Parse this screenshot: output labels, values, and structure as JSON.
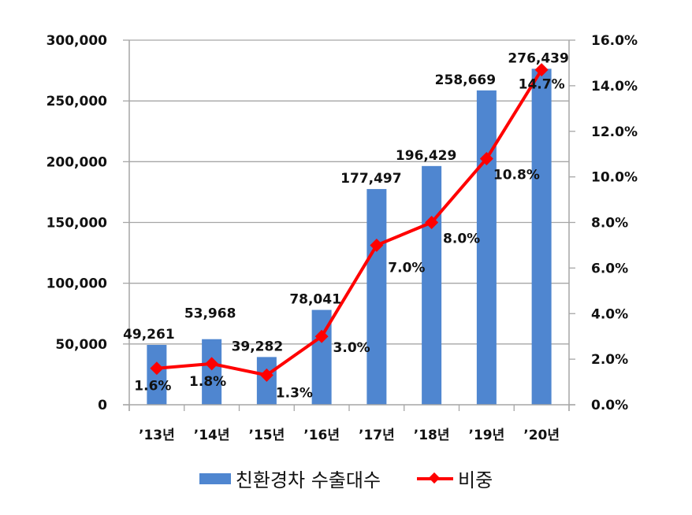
{
  "chart_data": {
    "type": "bar+line",
    "title": "",
    "categories": [
      "'13년",
      "'14년",
      "'15년",
      "'16년",
      "'17년",
      "'18년",
      "'19년",
      "'20년"
    ],
    "series": [
      {
        "name": "친환경차 수출대수",
        "type": "bar",
        "axis": "left",
        "color": "#4f86d0",
        "values": [
          49261,
          53968,
          39282,
          78041,
          177497,
          196429,
          258669,
          276439
        ],
        "labels": [
          "49,261",
          "53,968",
          "39,282",
          "78,041",
          "177,497",
          "196,429",
          "258,669",
          "276,439"
        ]
      },
      {
        "name": "비중",
        "type": "line",
        "axis": "right",
        "color": "#ff0000",
        "marker": "diamond",
        "values": [
          1.6,
          1.8,
          1.3,
          3.0,
          7.0,
          8.0,
          10.8,
          14.7
        ],
        "labels": [
          "1.6%",
          "1.8%",
          "1.3%",
          "3.0%",
          "7.0%",
          "8.0%",
          "10.8%",
          "14.7%"
        ]
      }
    ],
    "left_axis": {
      "ylim": [
        0,
        300000
      ],
      "ticks": [
        "0",
        "50,000",
        "100,000",
        "150,000",
        "200,000",
        "250,000",
        "300,000"
      ]
    },
    "right_axis": {
      "ylim": [
        0,
        16
      ],
      "ticks": [
        "0.0%",
        "2.0%",
        "4.0%",
        "6.0%",
        "8.0%",
        "10.0%",
        "12.0%",
        "14.0%",
        "16.0%"
      ]
    },
    "xlabel": "",
    "ylabel": "",
    "grid": "horizontal",
    "legend_position": "bottom"
  },
  "legend": {
    "bar_label": "친환경차 수출대수",
    "line_label": "비중"
  }
}
